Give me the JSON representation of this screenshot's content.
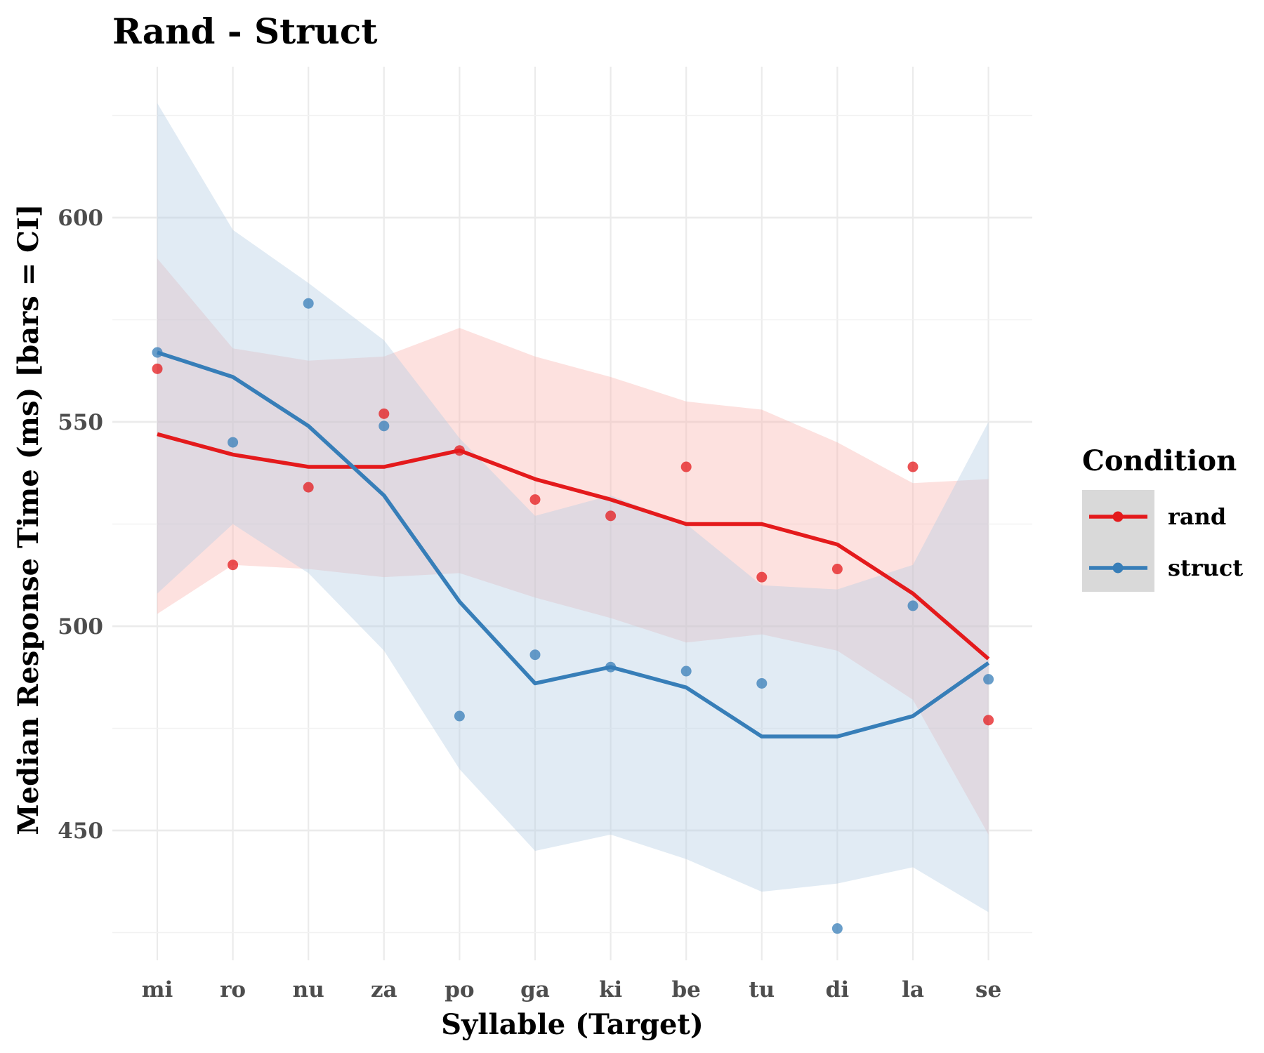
{
  "chart_data": {
    "type": "line",
    "title": "Rand - Struct",
    "xlabel": "Syllable (Target)",
    "ylabel": "Median Response Time (ms) [bars = CI]",
    "categories": [
      "mi",
      "ro",
      "nu",
      "za",
      "po",
      "ga",
      "ki",
      "be",
      "tu",
      "di",
      "la",
      "se"
    ],
    "ylim": [
      420,
      640
    ],
    "yticks": [
      450,
      500,
      550,
      600
    ],
    "grid": true,
    "legend": {
      "title": "Condition",
      "placement": "right",
      "entries": [
        "rand",
        "struct"
      ]
    },
    "series": [
      {
        "name": "rand",
        "color": "#E41A1C",
        "fill": "#FBB4AE",
        "line": [
          547,
          542,
          539,
          539,
          543,
          536,
          531,
          525,
          525,
          520,
          508,
          492
        ],
        "ci_lower": [
          503,
          515,
          514,
          512,
          513,
          507,
          502,
          496,
          498,
          494,
          482,
          449
        ],
        "ci_upper": [
          590,
          568,
          565,
          566,
          573,
          566,
          561,
          555,
          553,
          545,
          535,
          536
        ],
        "points": [
          563,
          515,
          534,
          552,
          543,
          531,
          527,
          539,
          512,
          514,
          539,
          477
        ]
      },
      {
        "name": "struct",
        "color": "#377EB8",
        "fill": "#B3CDE3",
        "line": [
          567,
          561,
          549,
          532,
          506,
          486,
          490,
          485,
          473,
          473,
          478,
          491
        ],
        "ci_lower": [
          508,
          525,
          513,
          494,
          465,
          445,
          449,
          443,
          435,
          437,
          441,
          430
        ],
        "ci_upper": [
          628,
          597,
          584,
          570,
          546,
          527,
          532,
          525,
          510,
          509,
          515,
          550
        ],
        "points": [
          567,
          545,
          579,
          549,
          478,
          493,
          490,
          489,
          486,
          426,
          505,
          487
        ]
      }
    ]
  }
}
